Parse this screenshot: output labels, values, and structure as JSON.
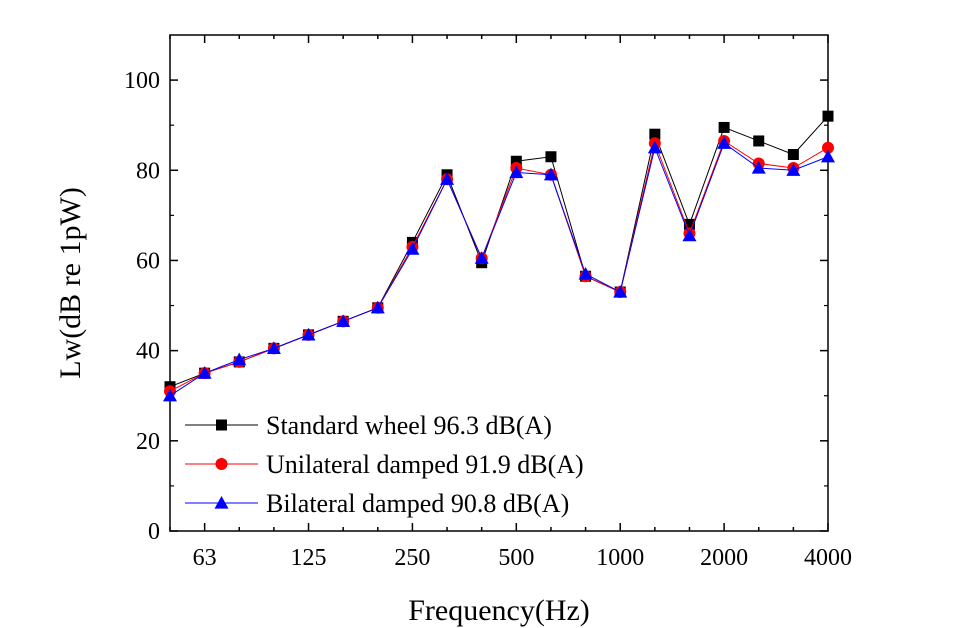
{
  "chart_data": {
    "type": "line",
    "xlabel": "Frequency(Hz)",
    "ylabel": "Lw(dB re 1pW)",
    "ylim": [
      0,
      110
    ],
    "y_ticks": [
      0,
      20,
      40,
      60,
      80,
      100
    ],
    "x": [
      "50",
      "63",
      "80",
      "100",
      "125",
      "160",
      "200",
      "250",
      "315",
      "400",
      "500",
      "630",
      "800",
      "1000",
      "1250",
      "1600",
      "2000",
      "2500",
      "3150",
      "4000"
    ],
    "x_tick_labels": [
      "63",
      "125",
      "250",
      "500",
      "1000",
      "2000",
      "4000"
    ],
    "legend_position": "bottom-left",
    "grid": false,
    "series": [
      {
        "name": "Standard wheel 96.3 dB(A)",
        "color": "#000000",
        "marker": "square",
        "values": [
          32,
          35,
          37.5,
          40.5,
          43.5,
          46.5,
          49.5,
          64,
          79,
          59.5,
          82,
          83,
          56.5,
          53,
          88,
          68,
          89.5,
          86.5,
          83.5,
          92
        ]
      },
      {
        "name": "Unilateral damped 91.9 dB(A)",
        "color": "#ff0000",
        "marker": "circle",
        "values": [
          31,
          35,
          37.5,
          40.5,
          43.5,
          46.5,
          49.5,
          63,
          78,
          60.5,
          80.5,
          79,
          56.5,
          53,
          86,
          66,
          86.5,
          81.5,
          80.5,
          85
        ]
      },
      {
        "name": "Bilateral damped 90.8 dB(A)",
        "color": "#0000ff",
        "marker": "triangle",
        "values": [
          30,
          35,
          38,
          40.5,
          43.5,
          46.5,
          49.5,
          62.5,
          78,
          60.5,
          79.5,
          79,
          57,
          53,
          85,
          65.5,
          86,
          80.5,
          80,
          83
        ]
      }
    ]
  }
}
